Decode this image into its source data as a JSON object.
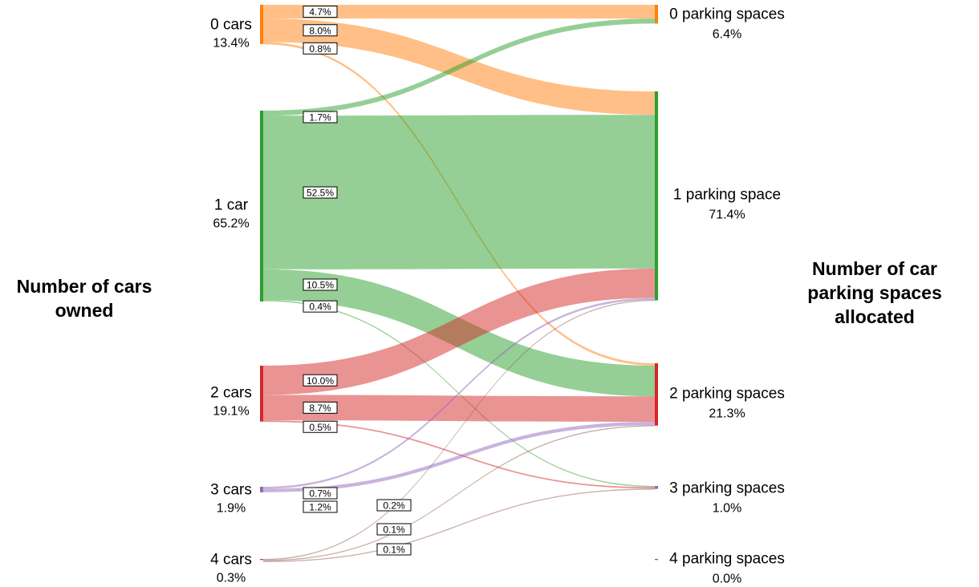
{
  "titles": {
    "left": "Number of cars owned",
    "right": "Number of car parking spaces allocated"
  },
  "colors": {
    "0 cars": "#ff7f0e",
    "1 car": "#2ca02c",
    "2 cars": "#d62728",
    "3 cars": "#9467bd",
    "4 cars": "#8c564b"
  },
  "chart_data": {
    "type": "sankey",
    "sources": [
      {
        "name": "0 cars",
        "pct": "13.4%",
        "value": 13.4
      },
      {
        "name": "1 car",
        "pct": "65.2%",
        "value": 65.2
      },
      {
        "name": "2 cars",
        "pct": "19.1%",
        "value": 19.1
      },
      {
        "name": "3 cars",
        "pct": "1.9%",
        "value": 1.9
      },
      {
        "name": "4 cars",
        "pct": "0.3%",
        "value": 0.3
      }
    ],
    "targets": [
      {
        "name": "0 parking spaces",
        "pct": "6.4%",
        "value": 6.4
      },
      {
        "name": "1 parking space",
        "pct": "71.4%",
        "value": 71.4
      },
      {
        "name": "2 parking spaces",
        "pct": "21.3%",
        "value": 21.3
      },
      {
        "name": "3 parking spaces",
        "pct": "1.0%",
        "value": 1.0
      },
      {
        "name": "4 parking spaces",
        "pct": "0.0%",
        "value": 0.0
      }
    ],
    "links": [
      {
        "source": "0 cars",
        "target": "0 parking spaces",
        "value": 4.7,
        "label": "4.7%"
      },
      {
        "source": "0 cars",
        "target": "1 parking space",
        "value": 8.0,
        "label": "8.0%"
      },
      {
        "source": "0 cars",
        "target": "2 parking spaces",
        "value": 0.8,
        "label": "0.8%"
      },
      {
        "source": "1 car",
        "target": "0 parking spaces",
        "value": 1.7,
        "label": "1.7%"
      },
      {
        "source": "1 car",
        "target": "1 parking space",
        "value": 52.5,
        "label": "52.5%"
      },
      {
        "source": "1 car",
        "target": "2 parking spaces",
        "value": 10.5,
        "label": "10.5%"
      },
      {
        "source": "1 car",
        "target": "3 parking spaces",
        "value": 0.4,
        "label": "0.4%"
      },
      {
        "source": "2 cars",
        "target": "1 parking space",
        "value": 10.0,
        "label": "10.0%"
      },
      {
        "source": "2 cars",
        "target": "2 parking spaces",
        "value": 8.7,
        "label": "8.7%"
      },
      {
        "source": "2 cars",
        "target": "3 parking spaces",
        "value": 0.5,
        "label": "0.5%"
      },
      {
        "source": "3 cars",
        "target": "1 parking space",
        "value": 0.7,
        "label": "0.7%"
      },
      {
        "source": "3 cars",
        "target": "2 parking spaces",
        "value": 1.2,
        "label": "1.2%"
      },
      {
        "source": "4 cars",
        "target": "1 parking space",
        "value": 0.2,
        "label": "0.2%"
      },
      {
        "source": "4 cars",
        "target": "2 parking spaces",
        "value": 0.1,
        "label": "0.1%"
      },
      {
        "source": "4 cars",
        "target": "3 parking spaces",
        "value": 0.1,
        "label": "0.1%"
      }
    ]
  }
}
